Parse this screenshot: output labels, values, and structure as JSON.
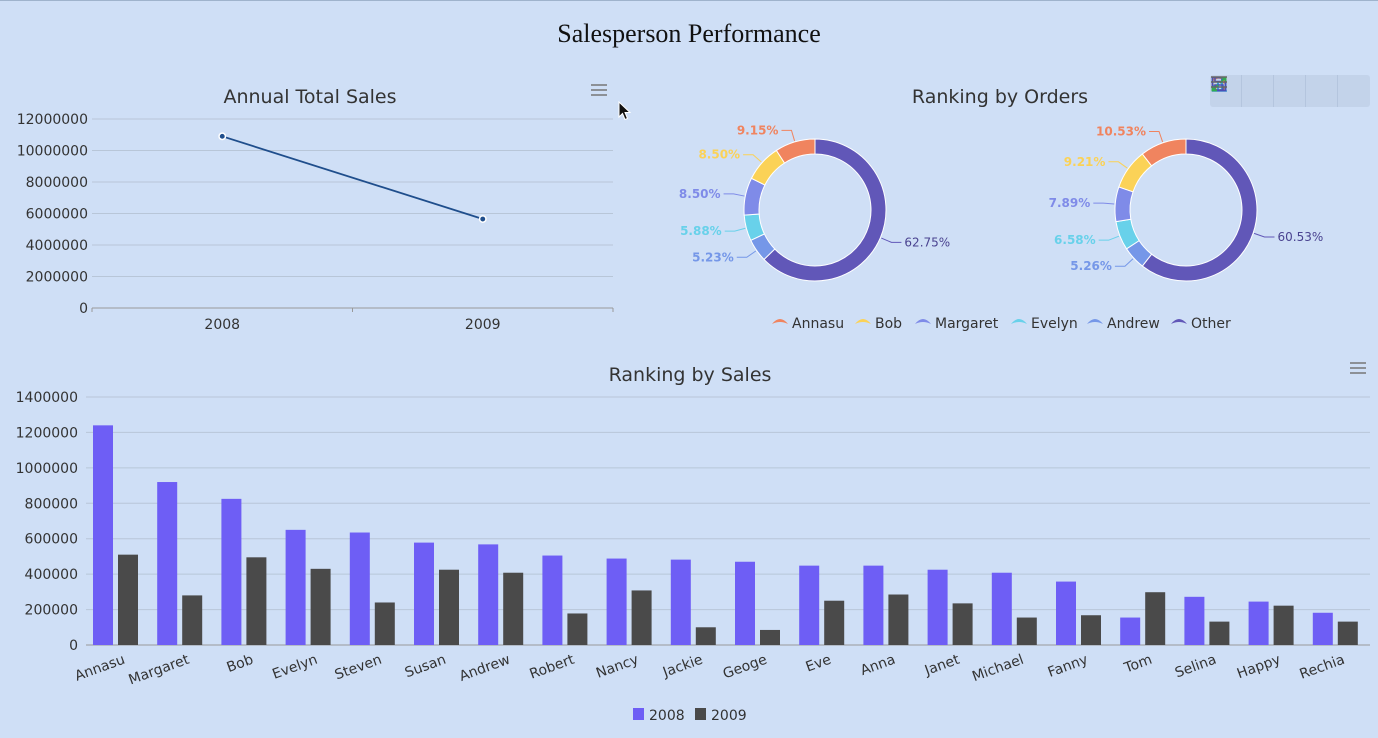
{
  "page": {
    "title": "Salesperson Performance"
  },
  "toolbar": {
    "icons": [
      "refresh-icon",
      "bar-chart-icon",
      "save-icon",
      "fullscreen-icon",
      "menu-icon"
    ],
    "colors": [
      "#f0883a",
      "#3a9fd8",
      "#4b4fb5",
      "#2fae4f",
      "#666666"
    ]
  },
  "chart_data": [
    {
      "type": "line",
      "title": "Annual Total Sales",
      "x": [
        "2008",
        "2009"
      ],
      "series": [
        {
          "values": [
            10900000,
            5650000
          ],
          "color": "#1f4e8c"
        }
      ],
      "ylim": [
        0,
        12000000
      ],
      "yticks": [
        "0",
        "2000000",
        "4000000",
        "6000000",
        "8000000",
        "10000000",
        "12000000"
      ],
      "grid": true
    },
    {
      "type": "pie",
      "title": "Ranking by Orders",
      "legend": [
        "Annasu",
        "Bob",
        "Margaret",
        "Evelyn",
        "Andrew",
        "Other"
      ],
      "colors": [
        "#f0845f",
        "#fbd257",
        "#7f8be8",
        "#68d1ea",
        "#7597e8",
        "#6157b8"
      ],
      "legend_position": "bottom",
      "pies": [
        {
          "values": [
            9.15,
            8.5,
            8.5,
            5.88,
            5.23,
            62.75
          ],
          "labels": [
            "9.15%",
            "8.50%",
            "8.50%",
            "5.88%",
            "5.23%",
            "62.75%"
          ]
        },
        {
          "values": [
            10.53,
            9.21,
            7.89,
            6.58,
            5.26,
            60.53
          ],
          "labels": [
            "10.53%",
            "9.21%",
            "7.89%",
            "6.58%",
            "5.26%",
            "60.53%"
          ]
        }
      ]
    },
    {
      "type": "bar",
      "title": "Ranking by Sales",
      "categories": [
        "Annasu",
        "Margaret",
        "Bob",
        "Evelyn",
        "Steven",
        "Susan",
        "Andrew",
        "Robert",
        "Nancy",
        "Jackie",
        "Geoge",
        "Eve",
        "Anna",
        "Janet",
        "Michael",
        "Fanny",
        "Tom",
        "Selina",
        "Happy",
        "Rechia"
      ],
      "series": [
        {
          "name": "2008",
          "color": "#6e5ef5",
          "values": [
            1240000,
            920000,
            825000,
            650000,
            635000,
            578000,
            568000,
            505000,
            488000,
            482000,
            470000,
            448000,
            448000,
            425000,
            408000,
            358000,
            155000,
            272000,
            245000,
            182000
          ]
        },
        {
          "name": "2009",
          "color": "#4a4a4a",
          "values": [
            510000,
            280000,
            495000,
            430000,
            240000,
            425000,
            408000,
            178000,
            308000,
            100000,
            85000,
            250000,
            285000,
            235000,
            155000,
            168000,
            298000,
            132000,
            222000,
            132000
          ]
        }
      ],
      "ylim": [
        0,
        1400000
      ],
      "yticks": [
        "0",
        "200000",
        "400000",
        "600000",
        "800000",
        "1000000",
        "1200000",
        "1400000"
      ],
      "legend_position": "bottom",
      "grid": true
    }
  ]
}
